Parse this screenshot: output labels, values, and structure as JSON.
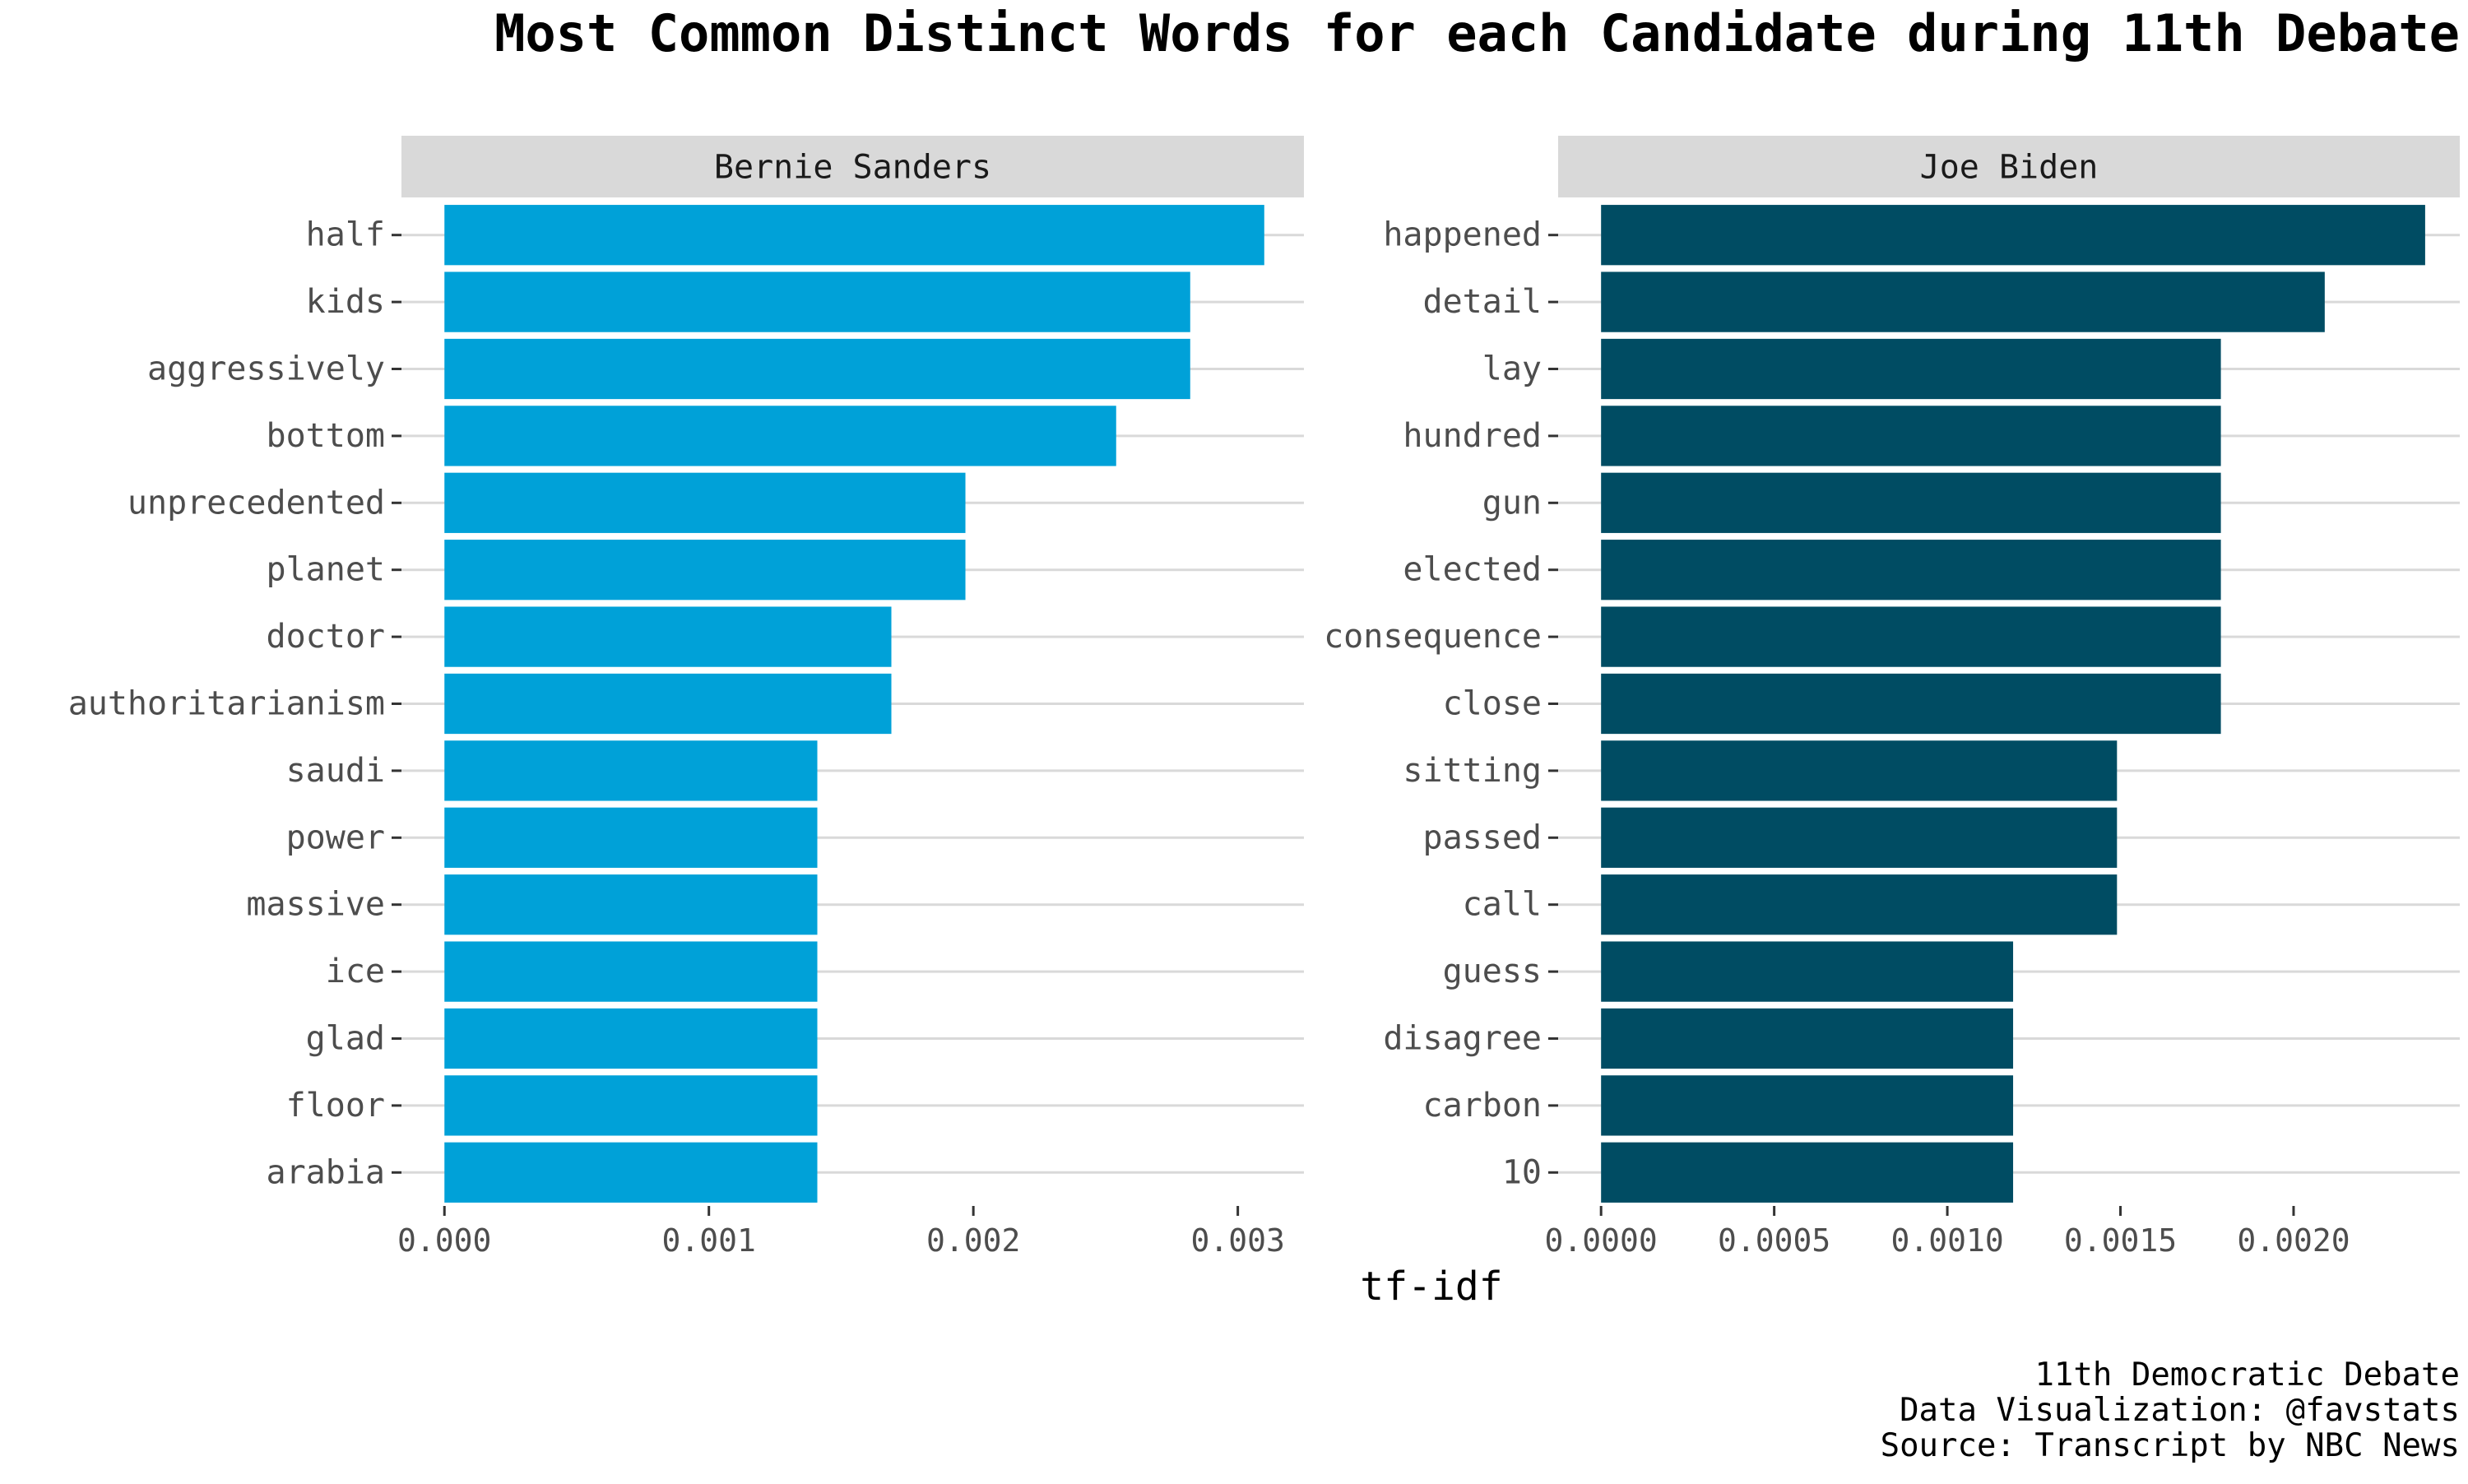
{
  "chart_data": {
    "type": "bar",
    "orientation": "horizontal",
    "title": "Most Common Distinct Words for each Candidate during 11th Debate",
    "xlabel": "tf-idf",
    "caption": [
      "11th Democratic Debate",
      "Data Visualization: @favstats",
      "Source: Transcript by NBC News"
    ],
    "grid": true,
    "legend": "none",
    "panels": [
      {
        "name": "Bernie Sanders",
        "color": "#00a1d8",
        "xlim": [
          0,
          0.00325
        ],
        "x_ticks": [
          0,
          0.001,
          0.002,
          0.003
        ],
        "x_tick_labels": [
          "0.000",
          "0.001",
          "0.002",
          "0.003"
        ],
        "categories": [
          "half",
          "kids",
          "aggressively",
          "bottom",
          "unprecedented",
          "planet",
          "doctor",
          "authoritarianism",
          "saudi",
          "power",
          "massive",
          "ice",
          "glad",
          "floor",
          "arabia"
        ],
        "values": [
          0.0031,
          0.00282,
          0.00282,
          0.00254,
          0.00197,
          0.00197,
          0.00169,
          0.00169,
          0.00141,
          0.00141,
          0.00141,
          0.00141,
          0.00141,
          0.00141,
          0.00141
        ]
      },
      {
        "name": "Joe Biden",
        "color": "#004c63",
        "xlim": [
          0,
          0.00248
        ],
        "x_ticks": [
          0,
          0.0005,
          0.001,
          0.0015,
          0.002
        ],
        "x_tick_labels": [
          "0.0000",
          "0.0005",
          "0.0010",
          "0.0015",
          "0.0020"
        ],
        "categories": [
          "happened",
          "detail",
          "lay",
          "hundred",
          "gun",
          "elected",
          "consequence",
          "close",
          "sitting",
          "passed",
          "call",
          "guess",
          "disagree",
          "carbon",
          "10"
        ],
        "values": [
          0.00238,
          0.00209,
          0.00179,
          0.00179,
          0.00179,
          0.00179,
          0.00179,
          0.00179,
          0.00149,
          0.00149,
          0.00149,
          0.00119,
          0.00119,
          0.00119,
          0.00119
        ]
      }
    ]
  }
}
